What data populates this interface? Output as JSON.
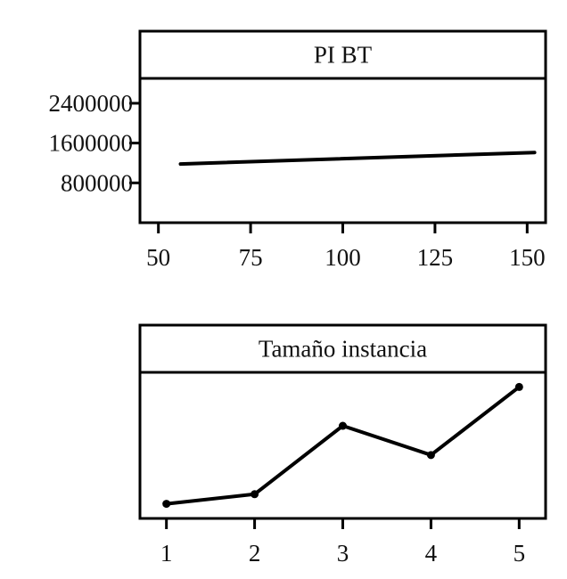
{
  "chart_data": [
    {
      "type": "line",
      "title": "PI BT",
      "xlabel": "",
      "ylabel": "",
      "xlim": [
        45,
        155
      ],
      "ylim": [
        0,
        2900000
      ],
      "x_ticks": [
        50,
        75,
        100,
        125,
        150
      ],
      "x_tick_labels": [
        "50",
        "75",
        "100",
        "125",
        "150"
      ],
      "y_ticks": [
        800000,
        1600000,
        2400000
      ],
      "y_tick_labels": [
        "800000",
        "1600000",
        "2400000"
      ],
      "grid": false,
      "markers": false,
      "series": [
        {
          "x": [
            56,
            152
          ],
          "y": [
            1180000,
            1410000
          ]
        }
      ]
    },
    {
      "type": "line",
      "title": "Tamaño  instancia",
      "xlabel": "",
      "ylabel": "",
      "xlim": [
        0.7,
        5.3
      ],
      "ylim": [
        0.5,
        5.5
      ],
      "x_ticks": [
        1,
        2,
        3,
        4,
        5
      ],
      "x_tick_labels": [
        "1",
        "2",
        "3",
        "4",
        "5"
      ],
      "y_ticks": [],
      "y_tick_labels": [],
      "grid": false,
      "markers": true,
      "series": [
        {
          "x": [
            1,
            2,
            3,
            4,
            5
          ],
          "y": [
            1,
            1.33,
            3.67,
            2.67,
            5
          ]
        }
      ]
    }
  ]
}
